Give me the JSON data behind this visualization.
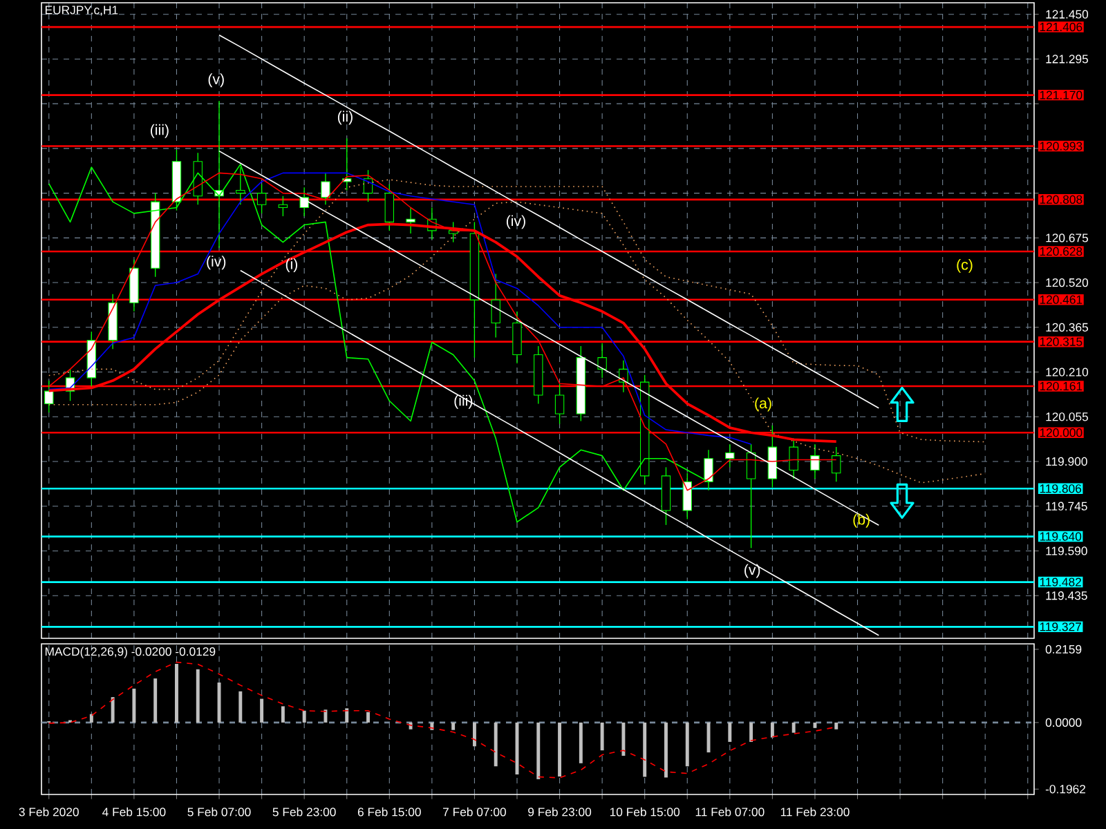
{
  "chart_data": [
    {
      "type": "candlestick",
      "title": "EURJPY.c,H1",
      "color": "#00ff00",
      "ohlc": [
        [
          120.1,
          120.18,
          120.07,
          120.144
        ],
        [
          120.144,
          120.22,
          120.11,
          120.19
        ],
        [
          120.19,
          120.35,
          120.16,
          120.32
        ],
        [
          120.32,
          120.48,
          120.29,
          120.45
        ],
        [
          120.45,
          120.6,
          120.42,
          120.57
        ],
        [
          120.57,
          120.83,
          120.54,
          120.8
        ],
        [
          120.8,
          120.98,
          120.77,
          120.94
        ],
        [
          120.94,
          120.97,
          120.79,
          120.82
        ],
        [
          120.82,
          121.15,
          120.64,
          120.84
        ],
        [
          120.84,
          120.92,
          120.79,
          120.83
        ],
        [
          120.83,
          120.86,
          120.76,
          120.79
        ],
        [
          120.79,
          120.82,
          120.75,
          120.78
        ],
        [
          120.78,
          120.85,
          120.75,
          120.815
        ],
        [
          120.815,
          120.9,
          120.79,
          120.87
        ],
        [
          120.87,
          121.02,
          120.84,
          120.88
        ],
        [
          120.88,
          120.91,
          120.8,
          120.83
        ],
        [
          120.83,
          120.86,
          120.7,
          120.73
        ],
        [
          120.73,
          120.78,
          120.69,
          120.74
        ],
        [
          120.74,
          120.78,
          120.67,
          120.7
        ],
        [
          120.7,
          120.73,
          120.66,
          120.69
        ],
        [
          120.69,
          120.73,
          120.26,
          120.46
        ],
        [
          120.46,
          120.55,
          120.33,
          120.38
        ],
        [
          120.38,
          120.42,
          120.24,
          120.27
        ],
        [
          120.27,
          120.3,
          120.1,
          120.13
        ],
        [
          120.13,
          120.17,
          120.03,
          120.065
        ],
        [
          120.065,
          120.3,
          120.04,
          120.26
        ],
        [
          120.26,
          120.31,
          120.19,
          120.22
        ],
        [
          120.22,
          120.25,
          120.14,
          120.175
        ],
        [
          120.175,
          120.2,
          119.82,
          119.85
        ],
        [
          119.85,
          119.88,
          119.68,
          119.73
        ],
        [
          119.73,
          119.86,
          119.7,
          119.83
        ],
        [
          119.83,
          119.94,
          119.8,
          119.91
        ],
        [
          119.91,
          119.96,
          119.88,
          119.93
        ],
        [
          119.93,
          119.96,
          119.6,
          119.84
        ],
        [
          119.84,
          120.025,
          119.81,
          119.95
        ],
        [
          119.95,
          119.98,
          119.84,
          119.87
        ],
        [
          119.87,
          119.96,
          119.84,
          119.92
        ],
        [
          119.92,
          119.95,
          119.83,
          119.86
        ],
        null,
        null,
        null,
        null,
        null,
        null,
        null,
        null,
        null
      ],
      "ylim": [
        119.287,
        121.49
      ],
      "yticks": [
        {
          "value": 121.45,
          "label": "121.450"
        },
        121.295,
        {
          "value": 121.14,
          "label": null
        },
        {
          "value": 120.985,
          "label": null
        },
        {
          "value": 120.83,
          "label": null
        },
        120.675,
        {
          "value": 120.52,
          "label": "120.520"
        },
        120.365,
        {
          "value": 120.21,
          "label": "120.210"
        },
        120.055,
        {
          "value": 119.9,
          "label": "119.900"
        },
        119.745,
        {
          "value": 119.59,
          "label": "119.590"
        },
        119.435
      ],
      "tick_labels": "y",
      "grid": true,
      "series": [
        {
          "type": "line",
          "color": "#f4a460",
          "line_style": "dotted",
          "values": [
            120.198,
            120.21,
            120.22,
            120.22,
            120.18,
            120.15,
            120.15,
            120.19,
            120.25,
            120.37,
            120.49,
            120.6,
            120.69,
            120.77,
            120.85,
            120.865,
            120.877,
            120.867,
            120.857,
            120.853,
            120.853,
            120.853,
            120.853,
            120.853,
            120.853,
            120.853,
            120.853,
            120.73,
            120.6,
            120.54,
            120.525,
            120.51,
            120.495,
            120.48,
            120.37,
            120.24,
            120.236,
            120.233,
            120.232,
            120.2,
            120.0,
            119.976,
            119.972,
            119.97,
            119.968,
            null,
            null
          ]
        },
        {
          "type": "line",
          "color": "#f4a460",
          "line_style": "dotted",
          "values": [
            120.097,
            120.097,
            120.097,
            120.097,
            120.097,
            120.097,
            120.105,
            120.14,
            120.2,
            120.32,
            120.395,
            120.47,
            120.51,
            120.5,
            120.46,
            120.466,
            120.5,
            120.545,
            120.61,
            120.68,
            120.74,
            120.795,
            120.8,
            120.79,
            120.78,
            120.77,
            120.76,
            120.65,
            120.53,
            120.467,
            120.39,
            120.32,
            120.245,
            120.12,
            119.998,
            119.97,
            119.945,
            119.93,
            119.91,
            119.885,
            119.855,
            119.826,
            119.836,
            119.847,
            119.858,
            null,
            null
          ]
        },
        {
          "type": "line",
          "color": "#00ff00",
          "values": [
            120.863,
            120.73,
            120.92,
            120.8,
            120.76,
            120.77,
            120.78,
            120.9,
            120.82,
            120.93,
            120.72,
            120.66,
            120.72,
            120.73,
            120.26,
            120.255,
            120.11,
            120.04,
            120.313,
            120.27,
            120.18,
            119.98,
            119.69,
            119.74,
            119.88,
            119.94,
            119.92,
            119.8,
            119.91,
            119.91,
            119.87,
            119.83,
            null,
            null,
            null,
            null,
            null,
            null,
            null,
            null,
            null,
            null,
            null,
            null,
            null,
            null,
            null
          ]
        },
        {
          "type": "line",
          "color": "#0000ff",
          "values": [
            120.15,
            120.155,
            120.23,
            120.31,
            120.33,
            120.51,
            120.52,
            120.55,
            120.69,
            120.8,
            120.87,
            120.9,
            120.9,
            120.9,
            120.9,
            120.87,
            120.835,
            120.82,
            120.81,
            120.8,
            120.79,
            120.53,
            120.5,
            120.44,
            120.365,
            120.365,
            120.365,
            120.265,
            120.06,
            120.01,
            120.0,
            119.99,
            119.983,
            119.96,
            null,
            null,
            null,
            null,
            null,
            null,
            null,
            null,
            null,
            null,
            null,
            null,
            null
          ]
        },
        {
          "type": "line",
          "color": "#ff0000",
          "values": [
            120.16,
            120.22,
            120.29,
            120.43,
            120.58,
            120.73,
            120.81,
            120.855,
            120.9,
            120.895,
            120.88,
            120.83,
            120.829,
            120.806,
            120.887,
            120.892,
            120.84,
            120.78,
            120.73,
            120.7,
            120.7,
            120.52,
            120.4,
            120.32,
            120.17,
            120.165,
            120.16,
            120.19,
            120.02,
            119.96,
            119.8,
            119.84,
            119.906,
            119.906,
            119.9,
            119.906,
            119.906,
            119.906,
            null,
            null,
            null,
            null,
            null,
            null,
            null,
            null,
            null
          ]
        },
        {
          "type": "line",
          "color": "#ff0000",
          "values": [
            120.145,
            120.15,
            120.155,
            120.18,
            120.22,
            120.29,
            120.35,
            120.41,
            120.46,
            120.505,
            120.55,
            120.59,
            120.625,
            120.66,
            120.695,
            120.72,
            120.723,
            120.72,
            120.713,
            120.707,
            120.7,
            120.66,
            120.61,
            120.54,
            120.475,
            120.45,
            120.42,
            120.38,
            120.29,
            120.17,
            120.1,
            120.06,
            120.017,
            120.0,
            119.99,
            119.976,
            119.972,
            119.969,
            null,
            null,
            null,
            null,
            null,
            null,
            null,
            null,
            null
          ]
        },
        {
          "type": "line",
          "color": "#ffffff",
          "values": [
            null,
            null,
            null,
            null,
            null,
            null,
            null,
            null,
            121.378,
            121.337,
            121.295,
            121.253,
            121.211,
            121.17,
            121.128,
            121.086,
            121.045,
            121.003,
            120.961,
            120.919,
            120.878,
            120.836,
            120.794,
            120.753,
            120.711,
            120.669,
            120.628,
            120.586,
            120.544,
            120.502,
            120.461,
            120.419,
            120.377,
            120.336,
            120.294,
            120.252,
            120.21,
            120.169,
            120.127,
            120.085,
            null,
            null,
            null,
            null,
            null,
            null,
            null
          ]
        },
        {
          "type": "line",
          "color": "#ffffff",
          "values": [
            null,
            null,
            null,
            null,
            null,
            null,
            null,
            null,
            120.976,
            120.934,
            120.892,
            120.85,
            120.808,
            120.766,
            120.725,
            120.683,
            120.641,
            120.599,
            120.557,
            120.515,
            120.474,
            120.432,
            120.39,
            120.348,
            120.306,
            120.264,
            120.223,
            120.181,
            120.139,
            120.097,
            120.055,
            120.013,
            119.972,
            119.93,
            119.888,
            119.846,
            119.804,
            119.762,
            119.72,
            119.679,
            null,
            null,
            null,
            null,
            null,
            null,
            null
          ]
        },
        {
          "type": "line",
          "color": "#ffffff",
          "values": [
            null,
            null,
            null,
            null,
            null,
            null,
            null,
            null,
            null,
            120.562,
            120.52,
            120.478,
            120.436,
            120.393,
            120.351,
            120.309,
            120.267,
            120.225,
            120.183,
            120.14,
            120.098,
            120.056,
            120.014,
            119.972,
            119.93,
            119.887,
            119.845,
            119.803,
            119.761,
            119.719,
            119.677,
            119.634,
            119.592,
            119.55,
            119.508,
            119.466,
            119.424,
            119.381,
            119.339,
            119.297,
            null,
            null,
            null,
            null,
            null,
            null,
            null
          ]
        }
      ],
      "ref_lines": [
        {
          "axis": "y",
          "value": 121.406,
          "label": "121.406",
          "color": "#ff0000"
        },
        {
          "axis": "y",
          "value": 121.17,
          "label": "121.170",
          "color": "#ff0000"
        },
        {
          "axis": "y",
          "value": 120.993,
          "label": "120.993",
          "color": "#ff0000"
        },
        {
          "axis": "y",
          "value": 120.808,
          "label": "120.808",
          "color": "#ff0000"
        },
        {
          "axis": "y",
          "value": 120.628,
          "label": "120.628",
          "color": "#ff0000"
        },
        {
          "axis": "y",
          "value": 120.461,
          "label": "120.461",
          "color": "#ff0000"
        },
        {
          "axis": "y",
          "value": 120.315,
          "label": "120.315",
          "color": "#ff0000"
        },
        {
          "axis": "y",
          "value": 120.161,
          "label": "120.161",
          "color": "#ff0000"
        },
        {
          "axis": "y",
          "value": 120.0,
          "label": "120.000",
          "color": "#ff0000"
        },
        {
          "axis": "y",
          "value": 119.806,
          "label": "119.806",
          "color": "#00ffff"
        },
        {
          "axis": "y",
          "value": 119.64,
          "label": "119.640",
          "color": "#00ffff"
        },
        {
          "axis": "y",
          "value": 119.482,
          "label": "119.482",
          "color": "#00ffff"
        },
        {
          "axis": "y",
          "value": 119.327,
          "label": "119.327",
          "color": "#00ffff"
        }
      ],
      "annotations": [
        "(v)",
        "(iii)",
        "(ii)",
        "(iv)",
        "(i)",
        "(iv)",
        "(iii)",
        "(v)",
        "(a)",
        "(b)",
        "(c)"
      ]
    },
    {
      "type": "bar",
      "title": "MACD(12,26,9) -0.0200 -0.0129",
      "color": "#c0c0c0",
      "categories": [
        "3 Feb 2020",
        null,
        null,
        null,
        "4 Feb 15:00",
        null,
        null,
        null,
        "5 Feb 07:00",
        null,
        null,
        null,
        "5 Feb 23:00",
        null,
        null,
        null,
        "6 Feb 15:00",
        null,
        null,
        null,
        "7 Feb 07:00",
        null,
        null,
        null,
        "9 Feb 23:00",
        null,
        null,
        null,
        "10 Feb 15:00",
        null,
        null,
        null,
        "11 Feb 07:00",
        null,
        null,
        null,
        "11 Feb 23:00",
        null,
        null,
        null,
        null,
        null,
        null,
        null,
        null,
        null,
        null
      ],
      "values": [
        0.004,
        0.007,
        0.025,
        0.075,
        0.1,
        0.13,
        0.173,
        0.157,
        0.118,
        0.092,
        0.07,
        0.048,
        0.035,
        0.038,
        0.042,
        0.031,
        0.0,
        -0.02,
        -0.022,
        -0.022,
        -0.07,
        -0.129,
        -0.153,
        -0.167,
        -0.159,
        -0.12,
        -0.082,
        -0.098,
        -0.16,
        -0.162,
        -0.129,
        -0.088,
        -0.057,
        -0.057,
        -0.044,
        -0.03,
        -0.016,
        -0.02,
        null,
        null,
        null,
        null,
        null,
        null,
        null,
        null,
        null
      ],
      "ylim": [
        -0.212,
        0.232
      ],
      "yticks": [
        0.2159,
        {
          "value": 0,
          "label": "0.0000"
        },
        -0.1962
      ],
      "grid": "x",
      "series": [
        {
          "type": "line",
          "color": "#ff0000",
          "line_style": "dashed",
          "values": [
            -0.002,
            0.0,
            0.02,
            0.068,
            0.11,
            0.15,
            0.178,
            0.172,
            0.143,
            0.11,
            0.08,
            0.055,
            0.035,
            0.033,
            0.035,
            0.035,
            0.01,
            -0.008,
            -0.016,
            -0.028,
            -0.05,
            -0.088,
            -0.12,
            -0.16,
            -0.163,
            -0.14,
            -0.095,
            -0.082,
            -0.11,
            -0.145,
            -0.15,
            -0.122,
            -0.083,
            -0.053,
            -0.042,
            -0.033,
            -0.025,
            -0.013,
            null,
            null,
            null,
            null,
            null,
            null,
            null,
            null,
            null
          ]
        }
      ],
      "ref_lines": [
        {
          "axis": "y",
          "value": 0,
          "color": "#778899",
          "line_style": "dashed"
        }
      ]
    }
  ]
}
